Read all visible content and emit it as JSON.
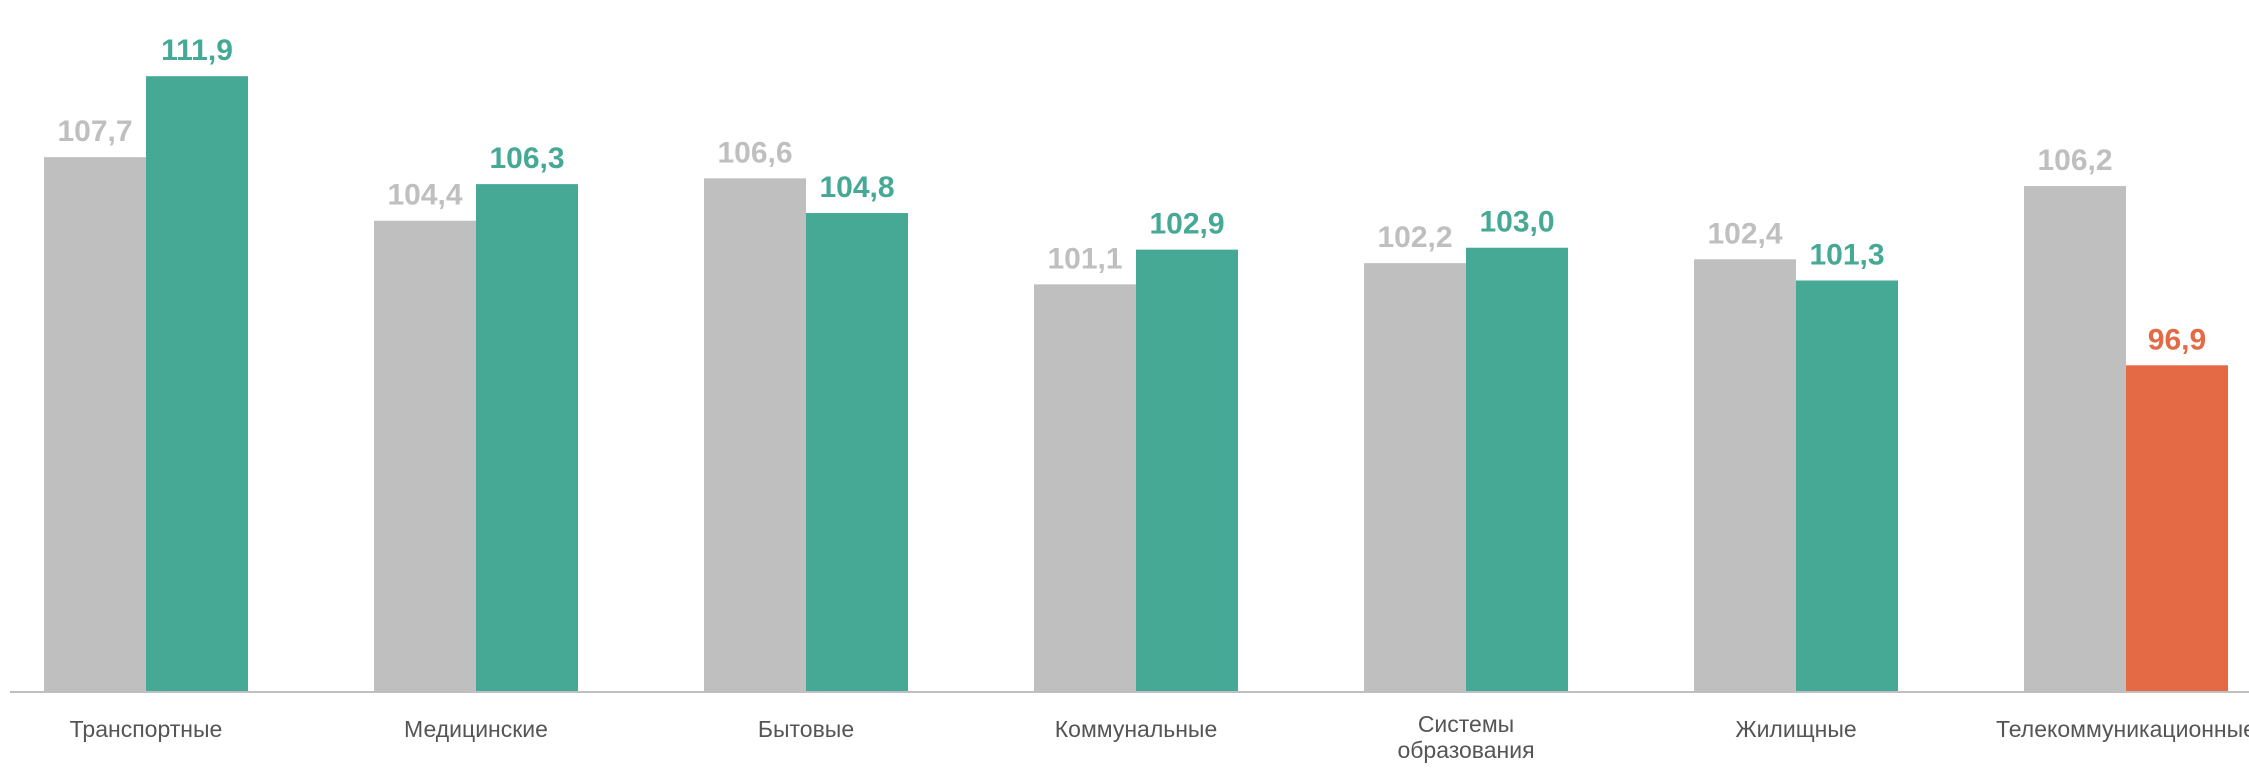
{
  "chart_data": {
    "type": "bar",
    "title": "",
    "xlabel": "",
    "ylabel": "",
    "grid": false,
    "legend": "none",
    "ylim": [
      80,
      113
    ],
    "categories": [
      [
        "Транспортные"
      ],
      [
        "Медицинские"
      ],
      [
        "Бытовые"
      ],
      [
        "Коммунальные"
      ],
      [
        "Системы",
        "образования"
      ],
      [
        "Жилищные"
      ],
      [
        "Телекоммуникационные"
      ]
    ],
    "series": [
      {
        "values": [
          107.7,
          104.4,
          106.6,
          101.1,
          102.2,
          102.4,
          106.2
        ],
        "labels": [
          "107,7",
          "104,4",
          "106,6",
          "101,1",
          "102,2",
          "102,4",
          "106,2"
        ],
        "color": "#bfbfbf",
        "label_color": "#bfbfbf"
      },
      {
        "values": [
          111.9,
          106.3,
          104.8,
          102.9,
          103.0,
          101.3,
          96.9
        ],
        "labels": [
          "111,9",
          "106,3",
          "104,8",
          "102,9",
          "103,0",
          "101,3",
          "96,9"
        ],
        "color": "#45a996",
        "label_color": "#45a996",
        "highlight_color": "#e36a44"
      }
    ],
    "axis_color": "#bfbfbf"
  }
}
